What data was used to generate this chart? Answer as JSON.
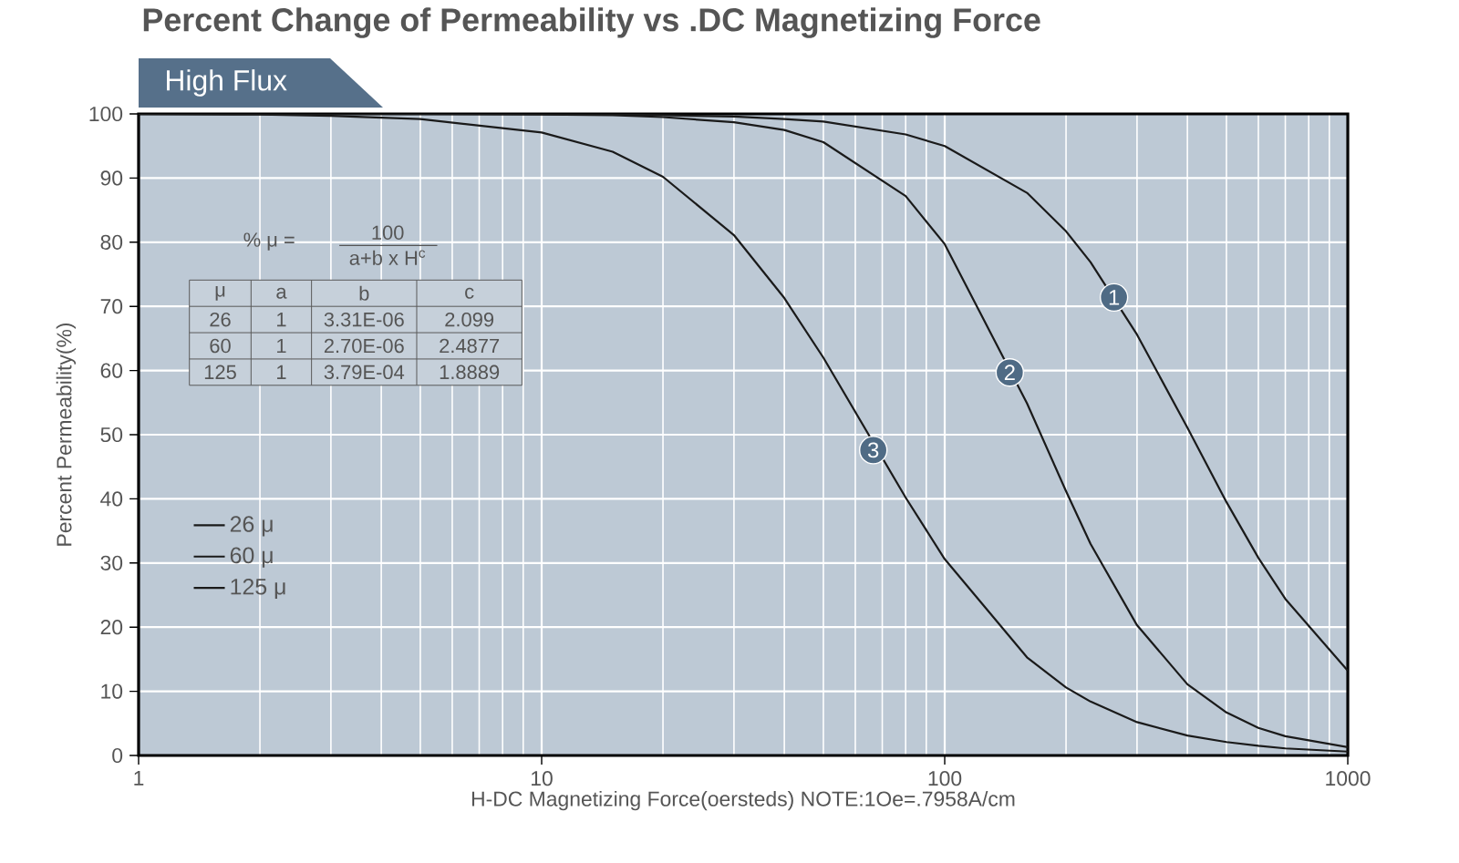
{
  "chart_data": {
    "type": "line",
    "title": "Percent Change of Permeability vs .DC Magnetizing Force",
    "subtitle": "High Flux",
    "xlabel": "H-DC Magnetizing Force(oersteds) NOTE:1Oe=.7958A/cm",
    "ylabel": "Percent Permeability(%)",
    "log": "x",
    "xlim": [
      1,
      1000
    ],
    "xticks": [
      1,
      10,
      100,
      1000
    ],
    "ylim": [
      0,
      100
    ],
    "yticks": [
      0,
      10,
      20,
      30,
      40,
      50,
      60,
      70,
      80,
      90,
      100
    ],
    "grid": true,
    "legend": "left",
    "marker": "none",
    "line_style": "solid",
    "x": [
      1,
      2,
      3,
      5,
      10,
      15,
      20,
      30,
      40,
      50,
      80,
      100,
      160,
      200,
      230,
      300,
      400,
      500,
      600,
      700,
      1000
    ],
    "series": [
      {
        "name": "26 μ",
        "color": "#1a1a1a",
        "values": [
          100,
          100,
          100,
          100,
          100,
          99.9,
          99.8,
          99.6,
          99.2,
          98.8,
          96.8,
          95.0,
          87.7,
          81.7,
          76.9,
          65.6,
          51.1,
          39.5,
          30.8,
          24.4,
          13.2
        ]
      },
      {
        "name": "60 μ",
        "color": "#1a1a1a",
        "values": [
          100,
          100,
          100,
          100,
          99.9,
          99.8,
          99.5,
          98.7,
          97.5,
          95.6,
          87.2,
          79.7,
          54.9,
          41.2,
          33.0,
          20.3,
          11.1,
          6.7,
          4.3,
          3.0,
          1.3
        ]
      },
      {
        "name": "125 μ",
        "color": "#1a1a1a",
        "values": [
          100,
          99.9,
          99.7,
          99.2,
          97.1,
          94.1,
          90.2,
          81.1,
          71.3,
          62.0,
          40.2,
          30.6,
          15.3,
          10.6,
          8.4,
          5.2,
          3.1,
          2.1,
          1.5,
          1.1,
          0.6
        ]
      }
    ],
    "annotations": [
      {
        "text": "1",
        "x": 263,
        "y": 71.4
      },
      {
        "text": "2",
        "x": 145,
        "y": 59.7
      },
      {
        "text": "3",
        "x": 66.5,
        "y": 47.6
      },
      "% μ =",
      "100",
      "a+b x H$^{c}$",
      "μ",
      "a",
      "b",
      "c",
      "26",
      "1",
      "3.31E-06",
      "2.099",
      "60",
      "1",
      "2.70E-06",
      "2.4877",
      "125",
      "1",
      "3.79E-04",
      "1.8889"
    ]
  }
}
